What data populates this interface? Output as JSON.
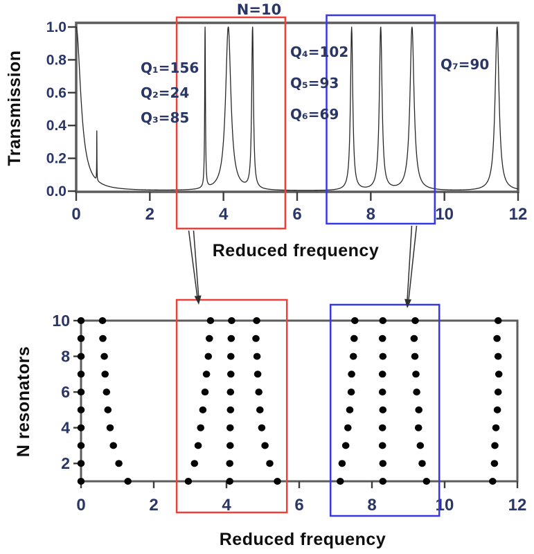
{
  "figure": {
    "description_labels": {
      "top_y_axis_title": "Transmission",
      "top_x_axis_title": "Reduced frequency",
      "bottom_y_axis_title": "N resonators",
      "bottom_x_axis_title": "Reduced frequency",
      "n_resonators_annotation": "N=10"
    },
    "colors": {
      "box_red": "#ee4038",
      "box_blue": "#3737e6",
      "curve": "#262626",
      "frame": "#5c5c5c",
      "tick_mark": "#3d3d3d",
      "tick_text": "#2a3666",
      "annotation_text": "#2a3666",
      "title_text": "#0e0e0e",
      "dot": "#030303",
      "arrow": "#2e2e2e",
      "background": "#ffffff"
    },
    "connector_arrows": [
      {
        "connects": "red-box-top-chart-to-red-box-bottom-chart",
        "direction": "down"
      },
      {
        "connects": "blue-box-top-chart-to-blue-box-bottom-chart",
        "direction": "down"
      }
    ]
  },
  "chart_data": [
    {
      "id": "transmission-spectrum",
      "type": "line",
      "title": "",
      "xlabel": "Reduced frequency",
      "ylabel": "Transmission",
      "xlim": [
        0,
        12
      ],
      "ylim": [
        0.0,
        1.0
      ],
      "x_ticks": [
        0,
        2,
        4,
        6,
        8,
        10,
        12
      ],
      "y_ticks": [
        "0.0",
        "0.2",
        "0.4",
        "0.6",
        "0.8",
        "1.0"
      ],
      "grid": false,
      "legend": null,
      "annotations": {
        "n_label": "N=10",
        "q_left": [
          "Q₁=156",
          "Q₂=24",
          "Q₃=85"
        ],
        "q_mid": [
          "Q₄=102",
          "Q₅=93",
          "Q₆=69"
        ],
        "q_right": "Q₇=90"
      },
      "peaks": [
        {
          "center": 0.0,
          "height": 1.0,
          "hwhm": 0.15,
          "Q": null
        },
        {
          "center": 0.56,
          "height": 0.3,
          "hwhm": 0.004,
          "Q": null
        },
        {
          "center": 3.5,
          "height": 1.0,
          "hwhm": 0.012,
          "Q": 156
        },
        {
          "center": 4.13,
          "height": 1.0,
          "hwhm": 0.086,
          "Q": 24
        },
        {
          "center": 4.79,
          "height": 1.0,
          "hwhm": 0.028,
          "Q": 85
        },
        {
          "center": 7.48,
          "height": 1.0,
          "hwhm": 0.037,
          "Q": 102
        },
        {
          "center": 8.27,
          "height": 1.0,
          "hwhm": 0.044,
          "Q": 93
        },
        {
          "center": 9.12,
          "height": 1.0,
          "hwhm": 0.066,
          "Q": 69
        },
        {
          "center": 11.43,
          "height": 1.0,
          "hwhm": 0.064,
          "Q": 90
        }
      ],
      "highlight_boxes": [
        {
          "color": "#ee4038",
          "x1": 2.73,
          "x2": 5.68
        },
        {
          "color": "#3737e6",
          "x1": 6.8,
          "x2": 9.74
        }
      ]
    },
    {
      "id": "resonance-map",
      "type": "scatter",
      "title": "",
      "xlabel": "Reduced frequency",
      "ylabel": "N resonators",
      "xlim": [
        0,
        12
      ],
      "ylim": [
        1,
        10
      ],
      "x_ticks": [
        0,
        2,
        4,
        6,
        8,
        10,
        12
      ],
      "y_ticks": [
        2,
        4,
        6,
        8,
        10
      ],
      "grid": false,
      "legend": null,
      "marker": {
        "shape": "circle",
        "color": "#030303",
        "radius_px": 5
      },
      "n_values": [
        1,
        2,
        3,
        4,
        5,
        6,
        7,
        8,
        9,
        10
      ],
      "branches": [
        {
          "name": "mode-1",
          "freqs": [
            0,
            0,
            0,
            0,
            0,
            0,
            0,
            0,
            0,
            0
          ]
        },
        {
          "name": "mode-2",
          "freqs": [
            1.29,
            1.04,
            0.89,
            0.8,
            0.74,
            0.7,
            0.66,
            0.64,
            0.6,
            0.59
          ]
        },
        {
          "name": "mode-3",
          "freqs": [
            2.95,
            3.12,
            3.22,
            3.29,
            3.35,
            3.41,
            3.45,
            3.5,
            3.53,
            3.56
          ]
        },
        {
          "name": "mode-4",
          "freqs": [
            4.09,
            4.09,
            4.1,
            4.1,
            4.11,
            4.11,
            4.12,
            4.12,
            4.13,
            4.14
          ]
        },
        {
          "name": "mode-5",
          "freqs": [
            5.4,
            5.19,
            5.06,
            4.97,
            4.92,
            4.89,
            4.86,
            4.84,
            4.81,
            4.83
          ]
        },
        {
          "name": "mode-6",
          "freqs": [
            7.13,
            7.18,
            7.28,
            7.34,
            7.39,
            7.43,
            7.44,
            7.49,
            7.51,
            7.53
          ]
        },
        {
          "name": "mode-7",
          "freqs": [
            8.3,
            8.3,
            8.29,
            8.29,
            8.3,
            8.29,
            8.29,
            8.3,
            8.29,
            8.3
          ]
        },
        {
          "name": "mode-8",
          "freqs": [
            9.5,
            9.38,
            9.33,
            9.28,
            9.29,
            9.23,
            9.21,
            9.18,
            9.16,
            9.19
          ]
        },
        {
          "name": "mode-9",
          "freqs": [
            11.32,
            11.37,
            11.38,
            11.41,
            11.45,
            11.47,
            11.49,
            11.47,
            11.44,
            11.47
          ]
        }
      ],
      "highlight_boxes": [
        {
          "color": "#ee4038",
          "x1": 2.63,
          "x2": 5.66
        },
        {
          "color": "#3737e6",
          "x1": 6.86,
          "x2": 9.85
        }
      ]
    }
  ]
}
